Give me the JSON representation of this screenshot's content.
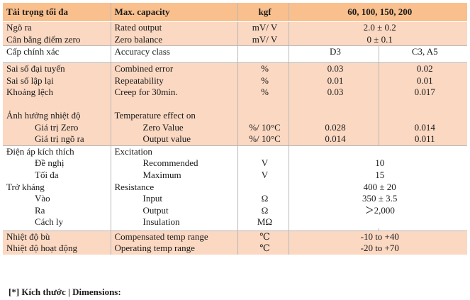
{
  "header": {
    "vi": "Tải trọng tối đa",
    "en": "Max. capacity",
    "unit": "kgf",
    "value": "60, 100, 150, 200"
  },
  "rows": {
    "rated_output": {
      "vi": "Ngõ ra",
      "en": "Rated output",
      "unit": "mV/ V",
      "value": "2.0 ± 0.2"
    },
    "zero_balance": {
      "vi": "Cân bằng điểm zero",
      "en": "Zero balance",
      "unit": "mV/ V",
      "value": "0 ± 0.1"
    },
    "accuracy_class": {
      "vi": "Cấp chính xác",
      "en": "Accuracy class",
      "unit": "",
      "v1": "D3",
      "v2": "C3, A5"
    },
    "combined_error": {
      "vi": "Sai số đại tuyến",
      "en": "Combined error",
      "unit": "%",
      "v1": "0.03",
      "v2": "0.02"
    },
    "repeatability": {
      "vi": "Sai số lập lại",
      "en": "Repeatability",
      "unit": "%",
      "v1": "0.01",
      "v2": "0.01"
    },
    "creep": {
      "vi": "Khoảng lệch",
      "en": "Creep for 30min.",
      "unit": "%",
      "v1": "0.03",
      "v2": "0.017"
    },
    "temp_effect": {
      "vi": "Ảnh hưởng nhiệt độ",
      "en": "Temperature effect on"
    },
    "temp_zero": {
      "vi": "Giá trị Zero",
      "en": "Zero Value",
      "unit": "%/ 10°C",
      "v1": "0.028",
      "v2": "0.014"
    },
    "temp_output": {
      "vi": "Giá trị ngõ ra",
      "en": "Output value",
      "unit": "%/ 10°C",
      "v1": "0.014",
      "v2": "0.011"
    },
    "excitation": {
      "vi": "Điện áp kích thích",
      "en": "Excitation"
    },
    "recommended": {
      "vi": "Đề nghị",
      "en": "Recommended",
      "unit": "V",
      "value": "10"
    },
    "maximum": {
      "vi": "Tối đa",
      "en": "Maximum",
      "unit": "V",
      "value": "15"
    },
    "resistance": {
      "vi": "Trở kháng",
      "en": "Resistance",
      "value": "400 ± 20"
    },
    "input": {
      "vi": "Vào",
      "en": "Input",
      "unit": "Ω",
      "value": "350 ± 3.5"
    },
    "output": {
      "vi": "Ra",
      "en": "Output",
      "unit": "Ω",
      "value": "＞2,000"
    },
    "insulation": {
      "vi": "Cách ly",
      "en": "Insulation",
      "unit": "MΩ",
      "value": ""
    },
    "comp_temp": {
      "vi": "Nhiệt độ bù",
      "en": "Compensated temp range",
      "unit": "℃",
      "value": "-10 to +40"
    },
    "op_temp": {
      "vi": "Nhiệt độ hoạt động",
      "en": "Operating temp range",
      "unit": "℃",
      "value": "-20 to +70"
    }
  },
  "note": "[*] Kích thước | Dimensions:",
  "colors": {
    "header_bg": "#f9c08e",
    "shade_bg": "#fbd8c2"
  }
}
